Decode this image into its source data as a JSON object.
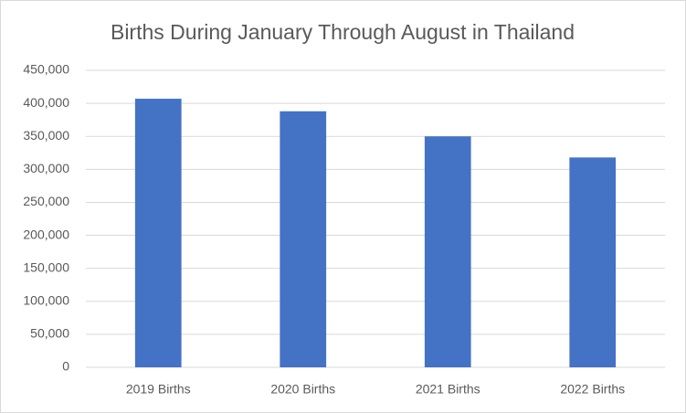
{
  "chart_data": {
    "type": "bar",
    "title": "Births During January Through August in Thailand",
    "categories": [
      "2019 Births",
      "2020 Births",
      "2021 Births",
      "2022 Births"
    ],
    "values": [
      407000,
      388000,
      350000,
      318000
    ],
    "color": "#4472c4",
    "ylim": [
      0,
      450000
    ],
    "yticks": [
      0,
      {
        "value": 50000,
        "label": "50,000"
      },
      {
        "value": 100000,
        "label": "100,000"
      },
      {
        "value": 150000,
        "label": "150,000"
      },
      {
        "value": 200000,
        "label": "200,000"
      },
      {
        "value": 250000,
        "label": "250,000"
      },
      {
        "value": 300000,
        "label": "300,000"
      },
      {
        "value": 350000,
        "label": "350,000"
      },
      {
        "value": 400000,
        "label": "400,000"
      },
      {
        "value": 450000,
        "label": "450,000"
      }
    ],
    "grid": true
  }
}
